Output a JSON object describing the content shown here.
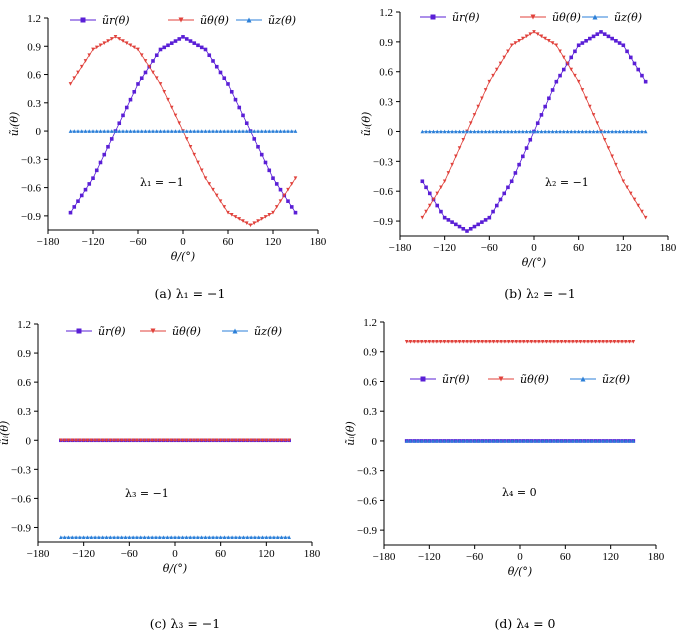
{
  "colors": {
    "ur": "#5a1fd6",
    "ut": "#e0413b",
    "uz": "#2b7fd8"
  },
  "chart_data": [
    {
      "type": "line",
      "caption": "(a) λ₁ = −1",
      "annotation": "λ₁ = −1",
      "xlabel": "θ/(°)",
      "ylabel": "ũᵢ(θ)",
      "xlim": [
        -180,
        180
      ],
      "ylim": [
        -1.05,
        1.2
      ],
      "xticks": [
        -180,
        -120,
        -60,
        0,
        60,
        120,
        180
      ],
      "yticks": [
        -0.9,
        -0.6,
        -0.3,
        0,
        0.3,
        0.6,
        0.9,
        1.2
      ],
      "ytick_labels": [
        "−0.9",
        "−0.6",
        "−0.3",
        "0",
        "0.3",
        "0.6",
        "0.9",
        "1.2"
      ],
      "legend": [
        "ũr(θ)",
        "ũθ(θ)",
        "ũz(θ)"
      ],
      "x_range": [
        -150,
        150
      ],
      "series": [
        {
          "name": "ũr(θ)",
          "x": [
            -150,
            -120,
            -90,
            -60,
            -30,
            0,
            30,
            60,
            90,
            120,
            150
          ],
          "y": [
            -0.866,
            -0.5,
            0.0,
            0.5,
            0.866,
            1.0,
            0.866,
            0.5,
            0.0,
            -0.5,
            -0.866
          ]
        },
        {
          "name": "ũθ(θ)",
          "x": [
            -150,
            -120,
            -90,
            -60,
            -30,
            0,
            30,
            60,
            90,
            120,
            150
          ],
          "y": [
            0.5,
            0.866,
            1.0,
            0.866,
            0.5,
            0.0,
            -0.5,
            -0.866,
            -1.0,
            -0.866,
            -0.5
          ]
        },
        {
          "name": "ũz(θ)",
          "x": [
            -150,
            150
          ],
          "y": [
            0,
            0
          ]
        }
      ]
    },
    {
      "type": "line",
      "caption": "(b) λ₂ = −1",
      "annotation": "λ₂ = −1",
      "xlabel": "θ/(°)",
      "ylabel": "ũᵢ(θ)",
      "xlim": [
        -180,
        180
      ],
      "ylim": [
        -1.05,
        1.2
      ],
      "xticks": [
        -180,
        -120,
        -60,
        0,
        60,
        120,
        180
      ],
      "yticks": [
        -0.9,
        -0.6,
        -0.3,
        0,
        0.3,
        0.6,
        0.9,
        1.2
      ],
      "ytick_labels": [
        "−0.9",
        "−0.6",
        "−0.3",
        "0",
        "0.3",
        "0.6",
        "0.9",
        "1.2"
      ],
      "legend": [
        "ũr(θ)",
        "ũθ(θ)",
        "ũz(θ)"
      ],
      "x_range": [
        -150,
        150
      ],
      "series": [
        {
          "name": "ũr(θ)",
          "x": [
            -150,
            -120,
            -90,
            -60,
            -30,
            0,
            30,
            60,
            90,
            120,
            150
          ],
          "y": [
            -0.5,
            -0.866,
            -1.0,
            -0.866,
            -0.5,
            0.0,
            0.5,
            0.866,
            1.0,
            0.866,
            0.5
          ]
        },
        {
          "name": "ũθ(θ)",
          "x": [
            -150,
            -120,
            -90,
            -60,
            -30,
            0,
            30,
            60,
            90,
            120,
            150
          ],
          "y": [
            -0.866,
            -0.5,
            0.0,
            0.5,
            0.866,
            1.0,
            0.866,
            0.5,
            0.0,
            -0.5,
            -0.866
          ]
        },
        {
          "name": "ũz(θ)",
          "x": [
            -150,
            150
          ],
          "y": [
            0,
            0
          ]
        }
      ]
    },
    {
      "type": "line",
      "caption": "(c) λ₃ = −1",
      "annotation": "λ₃ = −1",
      "xlabel": "θ/(°)",
      "ylabel": "ũᵢ(θ)",
      "xlim": [
        -180,
        180
      ],
      "ylim": [
        -1.05,
        1.2
      ],
      "xticks": [
        -180,
        -120,
        -60,
        0,
        60,
        120,
        180
      ],
      "yticks": [
        -0.9,
        -0.6,
        -0.3,
        0,
        0.3,
        0.6,
        0.9,
        1.2
      ],
      "ytick_labels": [
        "−0.9",
        "−0.6",
        "−0.3",
        "0",
        "0.3",
        "0.6",
        "0.9",
        "1.2"
      ],
      "legend": [
        "ũr(θ)",
        "ũθ(θ)",
        "ũz(θ)"
      ],
      "x_range": [
        -150,
        150
      ],
      "series": [
        {
          "name": "ũr(θ)",
          "x": [
            -150,
            150
          ],
          "y": [
            0,
            0
          ]
        },
        {
          "name": "ũθ(θ)",
          "x": [
            -150,
            150
          ],
          "y": [
            0,
            0
          ]
        },
        {
          "name": "ũz(θ)",
          "x": [
            -150,
            150
          ],
          "y": [
            -1.0,
            -1.0
          ]
        }
      ]
    },
    {
      "type": "line",
      "caption": "(d) λ₄ = 0",
      "annotation": "λ₄ = 0",
      "xlabel": "θ/(°)",
      "ylabel": "ũᵢ(θ)",
      "xlim": [
        -180,
        180
      ],
      "ylim": [
        -1.05,
        1.2
      ],
      "xticks": [
        -180,
        -120,
        -60,
        0,
        60,
        120,
        180
      ],
      "yticks": [
        -0.9,
        -0.6,
        -0.3,
        0,
        0.3,
        0.6,
        0.9,
        1.2
      ],
      "ytick_labels": [
        "−0.9",
        "−0.6",
        "−0.3",
        "0",
        "0.3",
        "0.6",
        "0.9",
        "1.2"
      ],
      "legend": [
        "ũr(θ)",
        "ũθ(θ)",
        "ũz(θ)"
      ],
      "x_range": [
        -150,
        150
      ],
      "series": [
        {
          "name": "ũr(θ)",
          "x": [
            -150,
            150
          ],
          "y": [
            0,
            0
          ]
        },
        {
          "name": "ũθ(θ)",
          "x": [
            -150,
            150
          ],
          "y": [
            1.0,
            1.0
          ]
        },
        {
          "name": "ũz(θ)",
          "x": [
            -150,
            150
          ],
          "y": [
            0,
            0
          ]
        }
      ]
    }
  ]
}
